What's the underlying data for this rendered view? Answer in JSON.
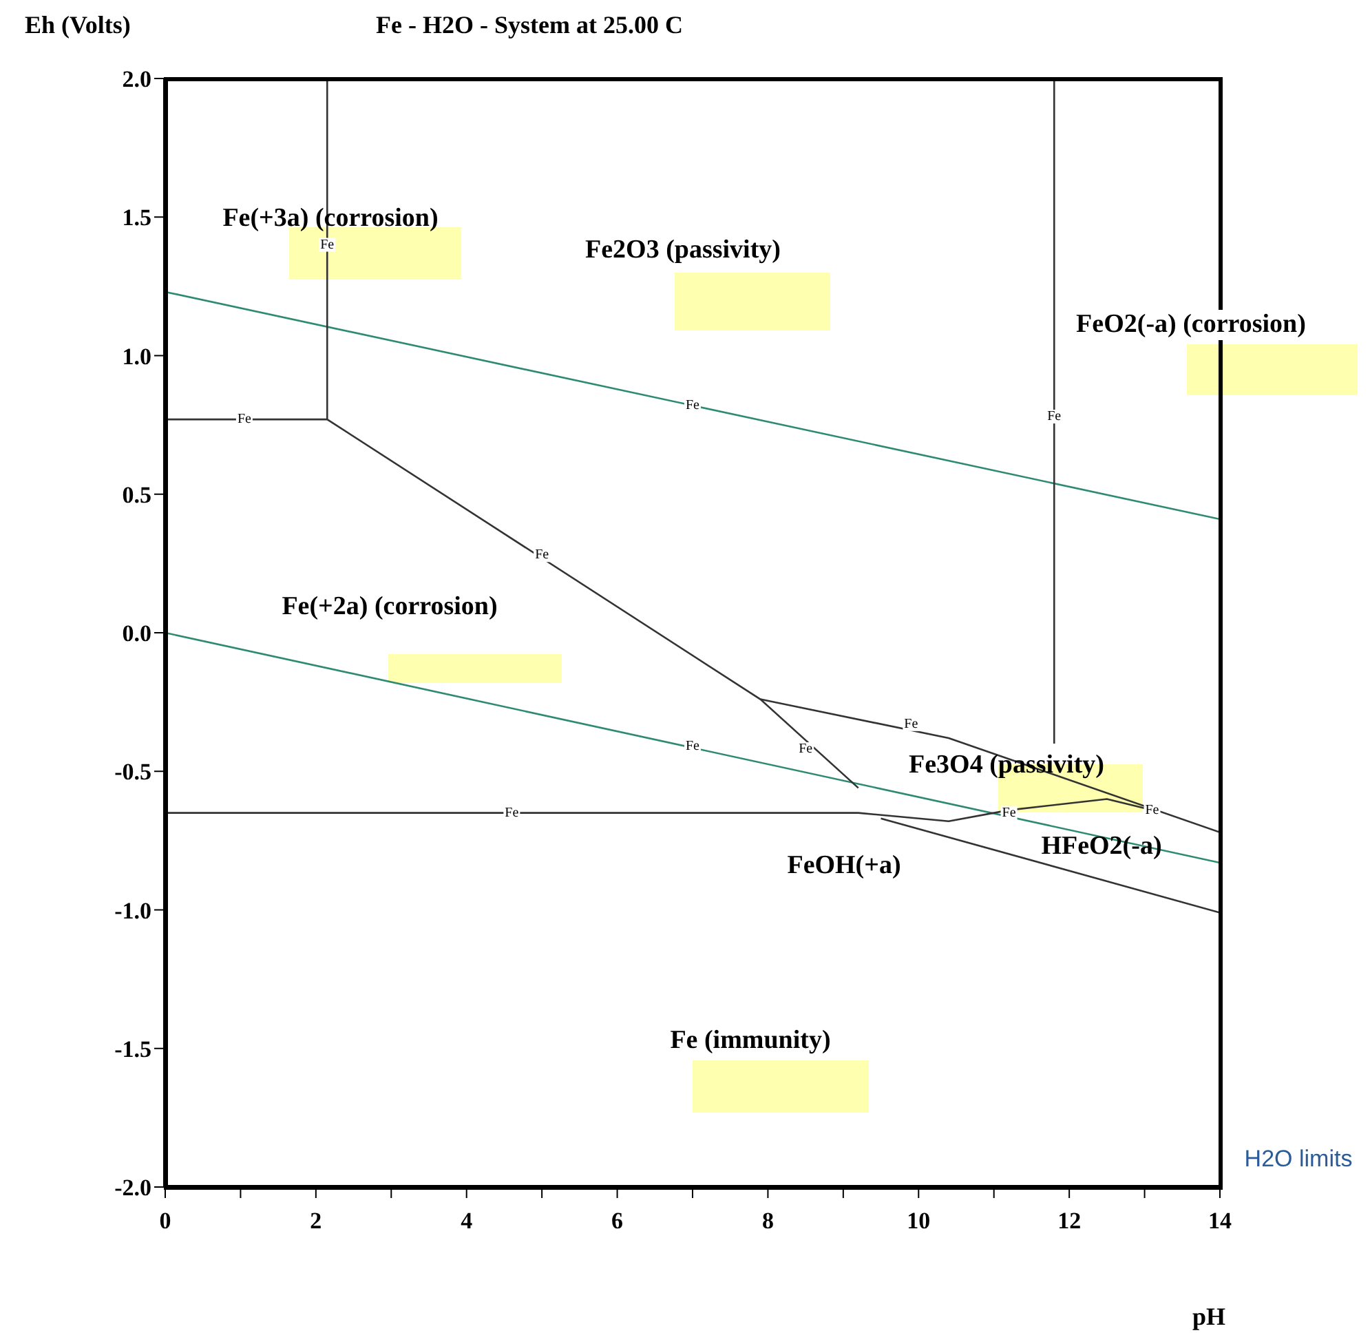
{
  "chart_data": {
    "type": "line",
    "title": "Fe - H2O - System at 25.00 C",
    "xlabel": "pH",
    "ylabel": "Eh (Volts)",
    "xlim": [
      0,
      14
    ],
    "ylim": [
      -2,
      2
    ],
    "xticks": [
      0,
      {
        "value": 1,
        "label": null
      },
      2,
      {
        "value": 3,
        "label": null
      },
      4,
      {
        "value": 5,
        "label": null
      },
      6,
      {
        "value": 7,
        "label": null
      },
      8,
      {
        "value": 9,
        "label": null
      },
      10,
      {
        "value": 11,
        "label": null
      },
      12,
      {
        "value": 13,
        "label": null
      },
      14
    ],
    "yticks": [
      {
        "value": -2,
        "label": "-2.0"
      },
      -1.5,
      {
        "value": -1,
        "label": "-1.0"
      },
      -0.5,
      {
        "value": 0,
        "label": "0.0"
      },
      0.5,
      {
        "value": 1,
        "label": "1.0"
      },
      1.5,
      {
        "value": 2,
        "label": "2.0"
      }
    ],
    "marker": "none",
    "line_style": "solid",
    "series": [
      {
        "color": "#2e8b72",
        "x": [
          0,
          14
        ],
        "values": [
          1.23,
          0.41
        ]
      },
      {
        "color": "#2e8b72",
        "x": [
          0,
          14
        ],
        "values": [
          0,
          -0.83
        ]
      },
      {
        "color": "#333333",
        "x": [
          0,
          2.15
        ],
        "values": [
          0.77,
          0.77
        ]
      },
      {
        "color": "#333333",
        "x": [
          2.15,
          2.15
        ],
        "values": [
          0.77,
          2
        ]
      },
      {
        "color": "#333333",
        "x": [
          2.15,
          7.9,
          9.2
        ],
        "values": [
          0.77,
          -0.24,
          -0.56
        ]
      },
      {
        "color": "#333333",
        "x": [
          7.9,
          10.4,
          14
        ],
        "values": [
          -0.24,
          -0.38,
          -0.72
        ]
      },
      {
        "color": "#333333",
        "x": [
          0,
          9.2,
          10.4,
          11.2,
          12.5,
          13.1
        ],
        "values": [
          -0.65,
          -0.65,
          -0.68,
          -0.64,
          -0.6,
          -0.64
        ]
      },
      {
        "color": "#333333",
        "x": [
          11.8,
          11.8
        ],
        "values": [
          2,
          -0.4
        ]
      },
      {
        "color": "#333333",
        "x": [
          9.5,
          14
        ],
        "values": [
          -0.67,
          -1.01
        ]
      }
    ],
    "annotations": [
      "Fe(+3a) (corrosion)",
      "Fe2O3 (passivity)",
      "FeO2(-a) (corrosion)",
      "Fe(+2a) (corrosion)",
      "Fe3O4 (passivity)",
      "HFeO2(-a)",
      "FeOH(+a)",
      "Fe (immunity)",
      {
        "text": "Fe",
        "x": 1.05,
        "y": 0.77
      },
      {
        "text": "Fe",
        "x": 2.15,
        "y": 1.4
      },
      {
        "text": "Fe",
        "x": 7,
        "y": 0.82
      },
      {
        "text": "Fe",
        "x": 11.8,
        "y": 0.78
      },
      {
        "text": "Fe",
        "x": 5,
        "y": 0.28
      },
      {
        "text": "Fe",
        "x": 8.5,
        "y": -0.42
      },
      {
        "text": "Fe",
        "x": 9.9,
        "y": -0.33
      },
      {
        "text": "Fe",
        "x": 7,
        "y": -0.41
      },
      {
        "text": "Fe",
        "x": 4.6,
        "y": -0.65
      },
      {
        "text": "Fe",
        "x": 11.2,
        "y": -0.65
      },
      {
        "text": "Fe",
        "x": 13.1,
        "y": -0.64
      },
      "H2O limits"
    ]
  }
}
